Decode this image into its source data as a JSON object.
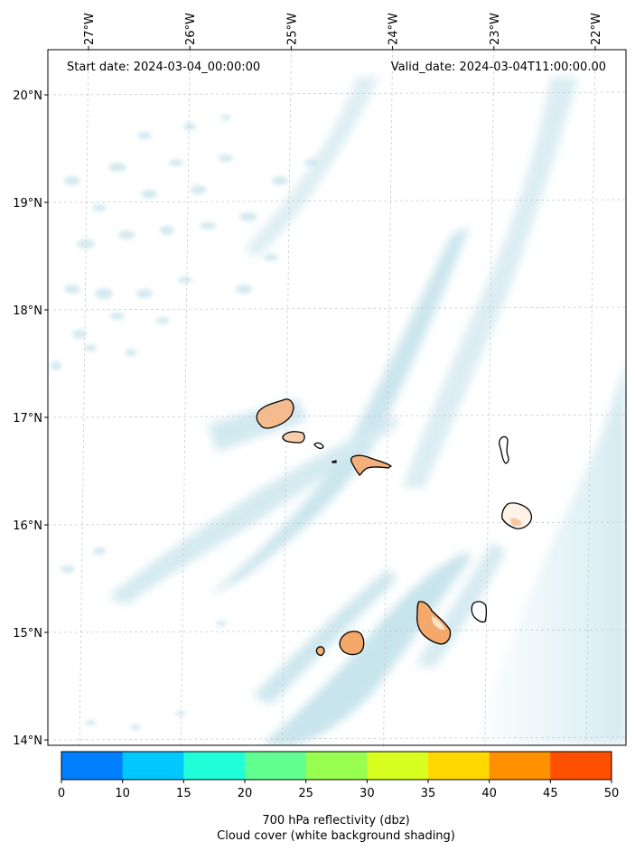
{
  "header": {
    "start_date": "Start date: 2024-03-04_00:00:00",
    "valid_date": "Valid_date: 2024-03-04T11:00:00.00"
  },
  "map": {
    "longitude_labels": [
      "27°W",
      "26°W",
      "25°W",
      "24°W",
      "23°W",
      "22°W"
    ],
    "longitude_values": [
      -27,
      -26,
      -25,
      -24,
      -23,
      -22
    ],
    "latitude_labels": [
      "20°N",
      "19°N",
      "18°N",
      "17°N",
      "16°N",
      "15°N",
      "14°N"
    ],
    "latitude_values": [
      20,
      19,
      18,
      17,
      16,
      15,
      14
    ],
    "gridlines": true,
    "cloud_cover_color": "#a9d6e5",
    "land_fill_color": "#f4bb8e",
    "land_outline_color": "#000000",
    "islands": [
      "santo-antao",
      "sao-vicente",
      "santa-luzia",
      "sao-nicolau",
      "sal",
      "boa-vista",
      "maio",
      "santiago",
      "fogo",
      "brava"
    ]
  },
  "colorbar": {
    "ticks": [
      "0",
      "10",
      "15",
      "20",
      "25",
      "30",
      "35",
      "40",
      "45",
      "50"
    ],
    "tick_values": [
      0,
      10,
      15,
      20,
      25,
      30,
      35,
      40,
      45,
      50
    ],
    "colors": [
      "#0080ff",
      "#00c8ff",
      "#20ffd8",
      "#60ff90",
      "#98ff50",
      "#d8ff20",
      "#ffd800",
      "#ff9000",
      "#ff5000"
    ],
    "label_line1": "700 hPa reflectivity (dbz)",
    "label_line2": "Cloud cover (white background shading)"
  }
}
